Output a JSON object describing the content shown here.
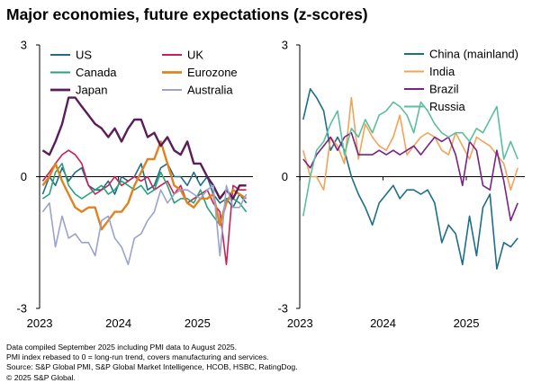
{
  "title": "Major economies, future expectations (z-scores)",
  "chart_data": [
    {
      "type": "line",
      "title": "",
      "xlabel": "",
      "ylabel": "",
      "ylim": [
        -3,
        3
      ],
      "xlim": [
        "2022-12-15",
        "2025-09-15"
      ],
      "y_ticks": [
        "3",
        "0",
        "-3"
      ],
      "x_ticks": [
        {
          "date": "2023-01-01",
          "label": "2023"
        },
        {
          "date": "2024-01-01",
          "label": "2024"
        },
        {
          "date": "2025-01-01",
          "label": "2025"
        }
      ],
      "x": [
        "2023-01",
        "2023-02",
        "2023-03",
        "2023-04",
        "2023-05",
        "2023-06",
        "2023-07",
        "2023-08",
        "2023-09",
        "2023-10",
        "2023-11",
        "2023-12",
        "2024-01",
        "2024-02",
        "2024-03",
        "2024-04",
        "2024-05",
        "2024-06",
        "2024-07",
        "2024-08",
        "2024-09",
        "2024-10",
        "2024-11",
        "2024-12",
        "2025-01",
        "2025-02",
        "2025-03",
        "2025-04",
        "2025-05",
        "2025-06",
        "2025-07",
        "2025-08"
      ],
      "grid": false,
      "legend_position": "top",
      "series": [
        {
          "name": "US",
          "color": "#1e6e87",
          "values": [
            -0.4,
            0.0,
            -0.2,
            0.2,
            -0.1,
            0.1,
            0.2,
            -0.2,
            -0.3,
            -0.3,
            -0.1,
            -0.4,
            0.0,
            -0.1,
            0.0,
            0.3,
            -0.3,
            -0.2,
            0.2,
            0.3,
            0.0,
            0.0,
            -0.2,
            0.1,
            -0.2,
            0.0,
            -0.4,
            -0.6,
            -0.5,
            -0.7,
            -0.4,
            -0.6
          ]
        },
        {
          "name": "UK",
          "color": "#c8215a",
          "values": [
            -0.1,
            0.1,
            0.3,
            0.5,
            0.6,
            0.5,
            0.3,
            -0.2,
            -0.4,
            -0.3,
            -0.2,
            0.0,
            -0.2,
            -0.1,
            0.0,
            -0.1,
            0.0,
            -0.3,
            -0.2,
            -0.1,
            -0.4,
            -0.2,
            -0.6,
            -0.5,
            -0.4,
            -0.3,
            -0.6,
            -0.8,
            -2.0,
            -0.2,
            -0.3,
            -0.3
          ]
        },
        {
          "name": "Canada",
          "color": "#29a37a",
          "values": [
            -0.5,
            -0.4,
            0.1,
            0.3,
            -0.2,
            -0.4,
            -0.5,
            -0.4,
            -0.3,
            -0.2,
            -0.4,
            -0.3,
            -0.1,
            -0.2,
            -0.3,
            -0.2,
            -0.4,
            -0.3,
            0.1,
            -0.2,
            -0.6,
            -0.5,
            -0.5,
            -0.6,
            -0.3,
            -0.7,
            -0.9,
            -1.1,
            -0.5,
            -0.5,
            -0.6,
            -0.8
          ]
        },
        {
          "name": "Eurozone",
          "color": "#e0821e",
          "values": [
            -0.2,
            0.0,
            0.3,
            -0.1,
            -0.4,
            -0.7,
            -0.8,
            -0.7,
            -0.7,
            -1.2,
            -1.0,
            -0.8,
            -0.8,
            -0.6,
            -0.2,
            0.1,
            0.4,
            0.4,
            0.8,
            0.3,
            -0.2,
            -0.3,
            -0.6,
            -0.7,
            -0.5,
            -0.5,
            -0.4,
            -1.1,
            -0.6,
            -0.3,
            -0.4,
            -0.5
          ]
        },
        {
          "name": "Japan",
          "color": "#5a1d59",
          "values": [
            0.6,
            0.5,
            0.8,
            1.2,
            1.8,
            1.8,
            1.6,
            1.4,
            1.2,
            1.1,
            0.9,
            1.1,
            0.8,
            1.1,
            1.3,
            1.3,
            0.9,
            1.0,
            0.7,
            0.9,
            0.6,
            0.5,
            0.8,
            0.3,
            0.3,
            0.0,
            -0.2,
            -0.5,
            -0.3,
            -0.5,
            -0.2,
            -0.2
          ]
        },
        {
          "name": "Australia",
          "color": "#9aa2cf",
          "values": [
            -0.8,
            -0.6,
            -1.6,
            -0.9,
            -1.4,
            -1.3,
            -1.5,
            -1.5,
            -1.8,
            -1.0,
            -0.9,
            -1.4,
            -1.6,
            -2.0,
            -1.4,
            -1.3,
            -1.0,
            -0.8,
            -0.3,
            -0.6,
            -0.4,
            -0.3,
            -0.3,
            -0.4,
            -0.5,
            -0.3,
            -0.2,
            -1.8,
            -0.2,
            -0.7,
            -0.7,
            -0.4
          ]
        }
      ]
    },
    {
      "type": "line",
      "title": "",
      "xlabel": "",
      "ylabel": "",
      "ylim": [
        -3,
        3
      ],
      "xlim": [
        "2022-12-15",
        "2025-09-15"
      ],
      "y_ticks": [
        "3",
        "0",
        "-3"
      ],
      "x_ticks": [
        {
          "date": "2023-01-01",
          "label": "2023"
        },
        {
          "date": "2024-01-01",
          "label": "2024"
        },
        {
          "date": "2025-01-01",
          "label": "2025"
        }
      ],
      "x": [
        "2023-01",
        "2023-02",
        "2023-03",
        "2023-04",
        "2023-05",
        "2023-06",
        "2023-07",
        "2023-08",
        "2023-09",
        "2023-10",
        "2023-11",
        "2023-12",
        "2024-01",
        "2024-02",
        "2024-03",
        "2024-04",
        "2024-05",
        "2024-06",
        "2024-07",
        "2024-08",
        "2024-09",
        "2024-10",
        "2024-11",
        "2024-12",
        "2025-01",
        "2025-02",
        "2025-03",
        "2025-04",
        "2025-05",
        "2025-06",
        "2025-07",
        "2025-08"
      ],
      "grid": false,
      "legend_position": "top-right",
      "series": [
        {
          "name": "China (mainland)",
          "color": "#1e6e87",
          "values": [
            1.3,
            2.0,
            1.8,
            1.5,
            0.6,
            0.9,
            0.6,
            0.0,
            -0.4,
            -0.7,
            -1.1,
            -0.6,
            -0.4,
            -0.2,
            -0.5,
            -0.3,
            -0.3,
            -0.4,
            -0.3,
            -0.6,
            -1.5,
            -1.1,
            -1.3,
            -2.0,
            -0.9,
            -1.8,
            -0.7,
            -0.4,
            -2.1,
            -1.5,
            -1.6,
            -1.4
          ]
        },
        {
          "name": "India",
          "color": "#f2a35a",
          "values": [
            0.6,
            0.0,
            0.0,
            -0.3,
            0.9,
            0.7,
            0.3,
            1.8,
            0.4,
            1.2,
            0.9,
            0.7,
            0.6,
            0.9,
            1.4,
            0.5,
            0.7,
            0.9,
            1.0,
            0.9,
            0.6,
            0.5,
            1.0,
            0.7,
            0.4,
            0.9,
            0.8,
            0.7,
            0.5,
            0.3,
            -0.3,
            0.2
          ]
        },
        {
          "name": "Brazil",
          "color": "#7b2287",
          "values": [
            0.4,
            0.2,
            0.5,
            0.7,
            0.9,
            0.6,
            0.9,
            1.0,
            0.5,
            0.5,
            0.5,
            0.6,
            0.5,
            0.6,
            0.5,
            0.6,
            0.7,
            0.5,
            0.7,
            0.9,
            0.8,
            0.9,
            0.5,
            -0.2,
            0.8,
            0.6,
            -0.2,
            -0.3,
            0.6,
            -0.1,
            -1.0,
            -0.6
          ]
        },
        {
          "name": "Russia",
          "color": "#5cbf9b",
          "values": [
            -0.9,
            0.0,
            0.6,
            0.8,
            1.2,
            1.5,
            0.5,
            1.1,
            0.9,
            1.3,
            1.0,
            1.4,
            1.5,
            1.7,
            1.6,
            1.4,
            1.0,
            1.7,
            1.5,
            1.2,
            1.0,
            0.9,
            1.0,
            1.0,
            0.8,
            1.1,
            1.0,
            1.3,
            1.6,
            0.4,
            0.8,
            0.4
          ]
        }
      ]
    }
  ],
  "notes": [
    "Data compiled September 2025 including PMI data to August 2025.",
    "PMI index rebased to 0 = long-run trend, covers manufacturing and services.",
    "Source: S&P Global PMI, S&P Global Market Intelligence, HCOB, HSBC, RatingDog.",
    "© 2025 S&P Global."
  ]
}
